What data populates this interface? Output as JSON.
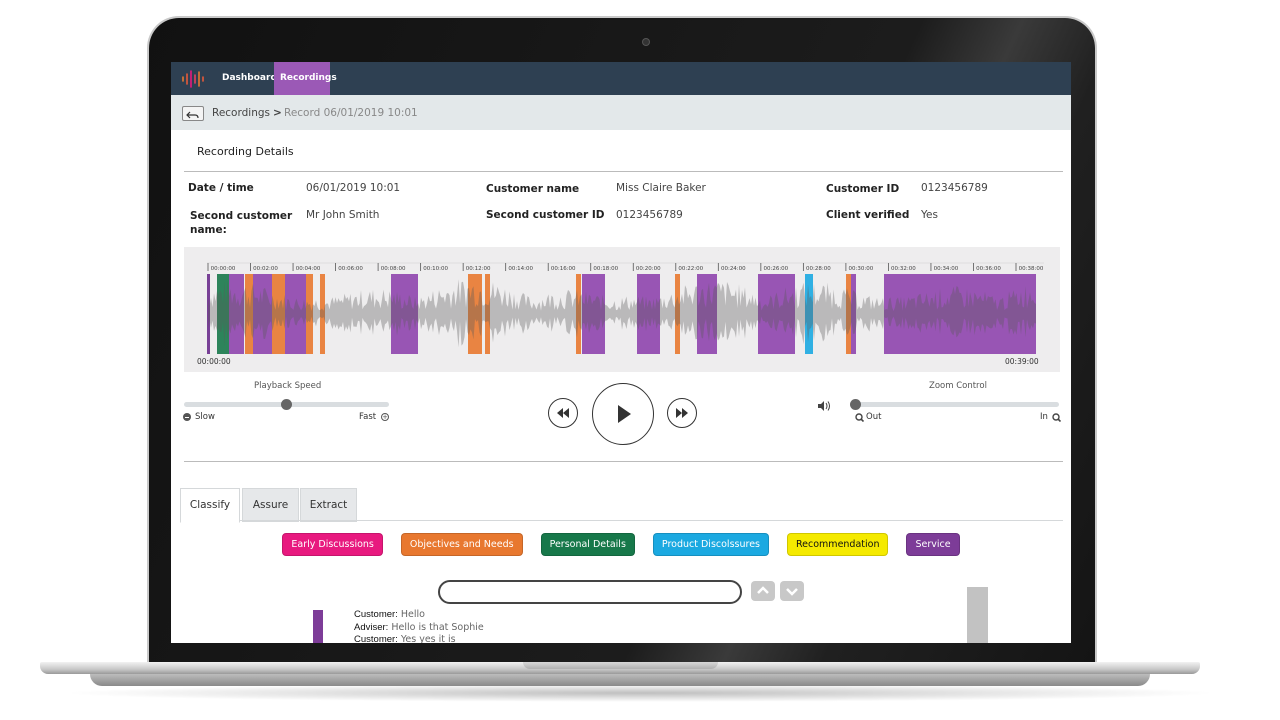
{
  "nav": {
    "items": [
      "Dashboard",
      "Recordings"
    ]
  },
  "breadcrumb": {
    "items": [
      "Recordings",
      "Record 06/01/2019 10:01"
    ],
    "separator": ">"
  },
  "section_title": "Recording Details",
  "details": [
    {
      "label": "Date / time",
      "value": "06/01/2019 10:01"
    },
    {
      "label": "Customer name",
      "value": "Miss Claire Baker"
    },
    {
      "label": "Customer ID",
      "value": "0123456789"
    },
    {
      "label": "Second customer name:",
      "value": "Mr John Smith"
    },
    {
      "label": "Second customer ID",
      "value": "0123456789"
    },
    {
      "label": "Client verified",
      "value": "Yes"
    }
  ],
  "timeline": {
    "ticks": [
      "00:00:00",
      "00:02:00",
      "00:04:00",
      "00:06:00",
      "00:08:00",
      "00:10:00",
      "00:12:00",
      "00:14:00",
      "00:16:00",
      "00:18:00",
      "00:20:00",
      "00:22:00",
      "00:24:00",
      "00:26:00",
      "00:28:00",
      "00:30:00",
      "00:32:00",
      "00:34:00",
      "00:36:00",
      "00:38:00"
    ],
    "start": "00:00:00",
    "end": "00:39:00"
  },
  "playback": {
    "label": "Playback Speed",
    "min_label": "Slow",
    "max_label": "Fast"
  },
  "zoom": {
    "label": "Zoom Control",
    "min_label": "Out",
    "max_label": "In"
  },
  "tabs": [
    "Classify",
    "Assure",
    "Extract"
  ],
  "tags": [
    {
      "name": "Early Discussions",
      "color": "#e8197f"
    },
    {
      "name": "Objectives and Needs",
      "color": "#e8782f"
    },
    {
      "name": "Personal Details",
      "color": "#17784a"
    },
    {
      "name": "Product Discolssures",
      "color": "#1ba9e1"
    },
    {
      "name": "Recommendation",
      "color": "#f5ea00"
    },
    {
      "name": "Service",
      "color": "#7d3c98"
    }
  ],
  "transcript": [
    {
      "speaker": "Customer:",
      "text": "Hello"
    },
    {
      "speaker": "Adviser:",
      "text": "Hello is that Sophie"
    },
    {
      "speaker": "Customer:",
      "text": "Yes yes it is"
    }
  ]
}
